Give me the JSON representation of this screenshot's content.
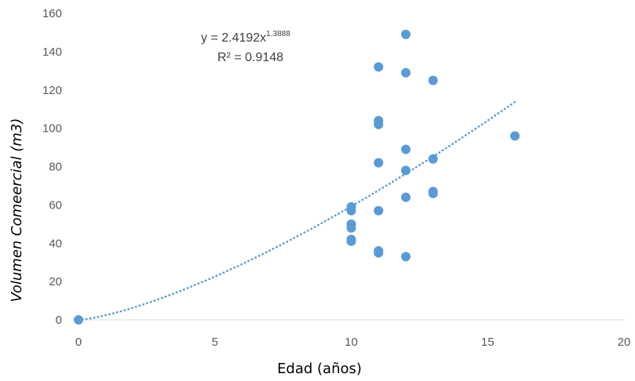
{
  "chart_data": {
    "type": "scatter",
    "title": "",
    "xlabel": "Edad (años)",
    "ylabel": "Volumen Comeercial (m3)",
    "xlim": [
      0,
      20
    ],
    "ylim": [
      0,
      160
    ],
    "xticks": [
      0,
      5,
      10,
      15,
      20
    ],
    "yticks": [
      0,
      20,
      40,
      60,
      80,
      100,
      120,
      140,
      160
    ],
    "grid": false,
    "color": "#5b9bd5",
    "trendline": {
      "kind": "power",
      "coefficient": 2.4192,
      "exponent": 1.3888,
      "x_range": [
        0,
        16
      ],
      "style": "dotted",
      "equation_prefix": "y = 2.4192x",
      "equation_exponent": "1.3888",
      "r_squared": "R² = 0.9148"
    },
    "points": [
      {
        "x": 0,
        "y": 0
      },
      {
        "x": 10,
        "y": 59
      },
      {
        "x": 10,
        "y": 57
      },
      {
        "x": 10,
        "y": 50
      },
      {
        "x": 10,
        "y": 48
      },
      {
        "x": 10,
        "y": 42
      },
      {
        "x": 10,
        "y": 41
      },
      {
        "x": 11,
        "y": 132
      },
      {
        "x": 11,
        "y": 104
      },
      {
        "x": 11,
        "y": 102
      },
      {
        "x": 11,
        "y": 82
      },
      {
        "x": 11,
        "y": 57
      },
      {
        "x": 11,
        "y": 36
      },
      {
        "x": 11,
        "y": 35
      },
      {
        "x": 12,
        "y": 149
      },
      {
        "x": 12,
        "y": 129
      },
      {
        "x": 12,
        "y": 89
      },
      {
        "x": 12,
        "y": 78
      },
      {
        "x": 12,
        "y": 64
      },
      {
        "x": 12,
        "y": 33
      },
      {
        "x": 13,
        "y": 125
      },
      {
        "x": 13,
        "y": 84
      },
      {
        "x": 13,
        "y": 67
      },
      {
        "x": 13,
        "y": 66
      },
      {
        "x": 16,
        "y": 96
      }
    ]
  }
}
